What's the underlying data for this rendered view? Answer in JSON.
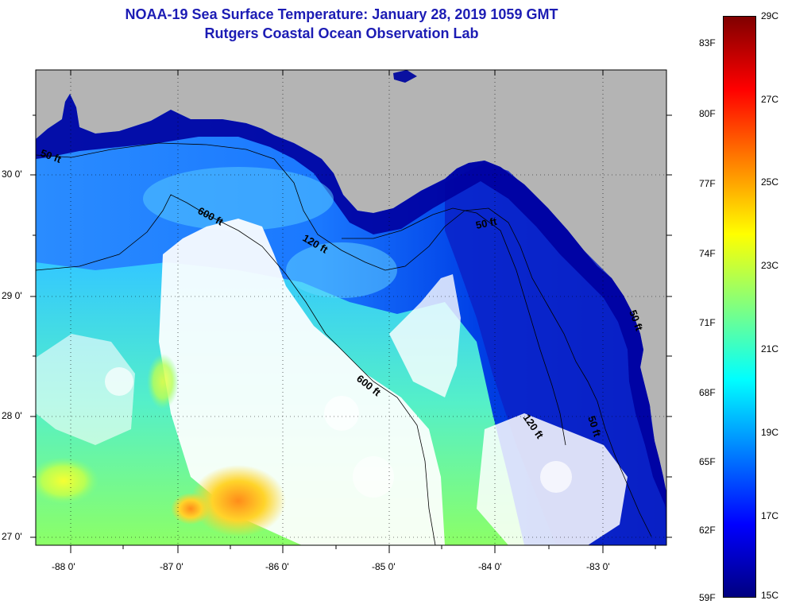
{
  "title_line1": "NOAA-19 Sea Surface Temperature:  January 28, 2019 1059 GMT",
  "title_line2": "Rutgers Coastal Ocean Observation Lab",
  "map": {
    "lon_ticks": [
      "-88 0'",
      "-87 0'",
      "-86 0'",
      "-85 0'",
      "-84 0'",
      "-83 0'"
    ],
    "lat_ticks": [
      "30 0'",
      "29 0'",
      "28 0'",
      "27 0'"
    ],
    "contour_labels": [
      "50 ft",
      "600 ft",
      "120 ft",
      "50 ft",
      "600 ft",
      "120 ft",
      "50 ft",
      "50 ft"
    ],
    "colors": {
      "land": "#b4b4b4",
      "cloud": "#ffffff",
      "contour": "#000000"
    }
  },
  "colorbar": {
    "fahrenheit_labels": [
      "83F",
      "80F",
      "77F",
      "74F",
      "71F",
      "68F",
      "65F",
      "62F",
      "59F"
    ],
    "celsius_labels": [
      "29C",
      "27C",
      "25C",
      "23C",
      "21C",
      "19C",
      "17C",
      "15C"
    ],
    "colors": [
      "#000080",
      "#0000ff",
      "#0080ff",
      "#00ffff",
      "#80ff80",
      "#ffff00",
      "#ff8000",
      "#ff0000",
      "#800000"
    ]
  }
}
